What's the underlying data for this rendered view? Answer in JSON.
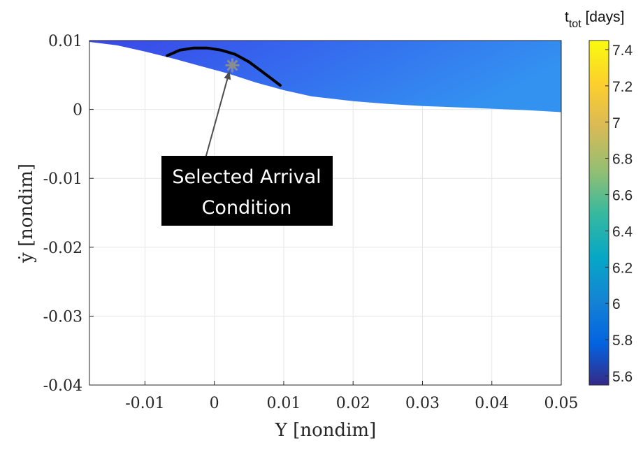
{
  "chart_data": {
    "type": "heatmap",
    "title": "",
    "xlabel": "Y [nondim]",
    "ylabel": "ẏ [nondim]",
    "xlim": [
      -0.018,
      0.05
    ],
    "ylim": [
      -0.04,
      0.01
    ],
    "x_ticks": [
      -0.01,
      0,
      0.01,
      0.02,
      0.03,
      0.04,
      0.05
    ],
    "x_tick_labels": [
      "-0.01",
      "0",
      "0.01",
      "0.02",
      "0.03",
      "0.04",
      "0.05"
    ],
    "y_ticks": [
      0.01,
      0,
      -0.01,
      -0.02,
      -0.03,
      -0.04
    ],
    "y_tick_labels": [
      "0.01",
      "0",
      "-0.01",
      "-0.02",
      "-0.03",
      "-0.04"
    ],
    "grid": true,
    "feasible_region": {
      "upper_boundary_y": 0.01,
      "lower_boundary": {
        "x": [
          -0.018,
          -0.014,
          -0.01,
          -0.006,
          -0.002,
          0.002,
          0.006,
          0.01,
          0.014,
          0.02,
          0.025,
          0.03,
          0.035,
          0.04,
          0.045,
          0.05
        ],
        "y": [
          0.0098,
          0.0093,
          0.0084,
          0.0074,
          0.0063,
          0.0052,
          0.0039,
          0.0028,
          0.0019,
          0.0012,
          0.0008,
          0.0005,
          0.0003,
          0.0001,
          -0.0001,
          -0.0004
        ]
      },
      "t_tot_range_days": [
        5.7,
        5.95
      ]
    },
    "series": [
      {
        "type": "line",
        "color": "#000000",
        "x": [
          -0.0068,
          -0.005,
          -0.003,
          -0.001,
          0.001,
          0.003,
          0.005,
          0.007,
          0.0095
        ],
        "y": [
          0.0078,
          0.0086,
          0.0089,
          0.0089,
          0.0086,
          0.008,
          0.0069,
          0.0054,
          0.0035
        ]
      },
      {
        "type": "scatter",
        "marker": "asterisk",
        "color": "#8c8c8c",
        "x": [
          0.0026
        ],
        "y": [
          0.0064
        ]
      }
    ],
    "annotation": {
      "text_line1": "Selected Arrival",
      "text_line2": "Condition",
      "arrow_from": [
        -0.0012,
        -0.0068
      ],
      "arrow_to": [
        0.0022,
        0.0056
      ]
    },
    "colorbar": {
      "title_main": "t",
      "title_sub": "tot",
      "title_unit": " [days]",
      "range": [
        5.55,
        7.45
      ],
      "ticks": [
        5.6,
        5.8,
        6,
        6.2,
        6.4,
        6.6,
        6.8,
        7,
        7.2,
        7.4
      ],
      "tick_labels": [
        "5.6",
        "5.8",
        "6",
        "6.2",
        "6.4",
        "6.6",
        "6.8",
        "7",
        "7.2",
        "7.4"
      ],
      "colormap": "parula"
    }
  }
}
